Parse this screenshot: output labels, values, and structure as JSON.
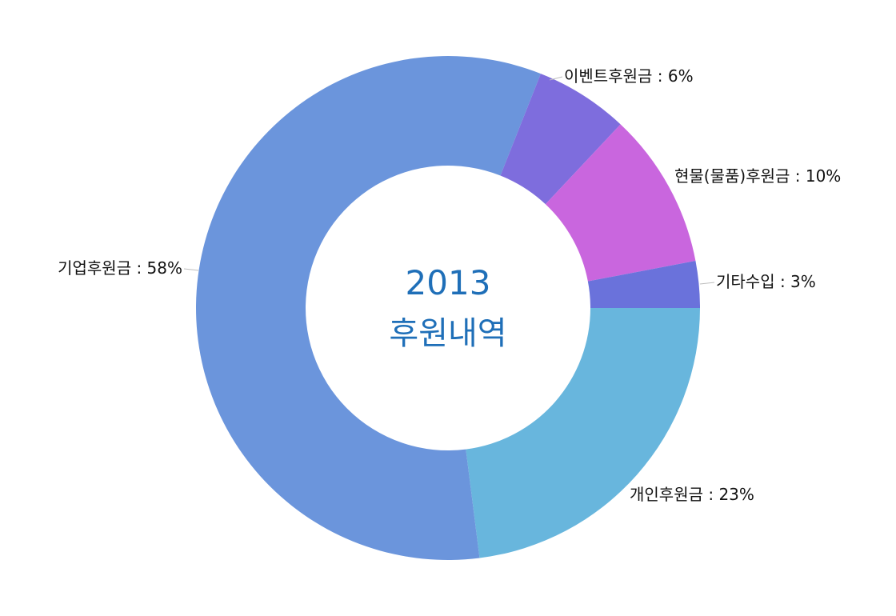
{
  "chart_data": {
    "type": "pie",
    "subtype": "donut",
    "center_text": [
      "2013",
      "후원내역"
    ],
    "center_color": "#1f6fb8",
    "slices": [
      {
        "label": "개인후원금 : 23%",
        "value": 23,
        "color": "#68b6dd"
      },
      {
        "label": "기업후원금 : 58%",
        "value": 58,
        "color": "#6b95dc"
      },
      {
        "label": "이벤트후원금 : 6%",
        "value": 6,
        "color": "#7e6ddd"
      },
      {
        "label": "현물(물품)후원금 : 10%",
        "value": 10,
        "color": "#c966de"
      },
      {
        "label": "기타수입 : 3%",
        "value": 3,
        "color": "#6a72db"
      }
    ],
    "legend": "none"
  }
}
